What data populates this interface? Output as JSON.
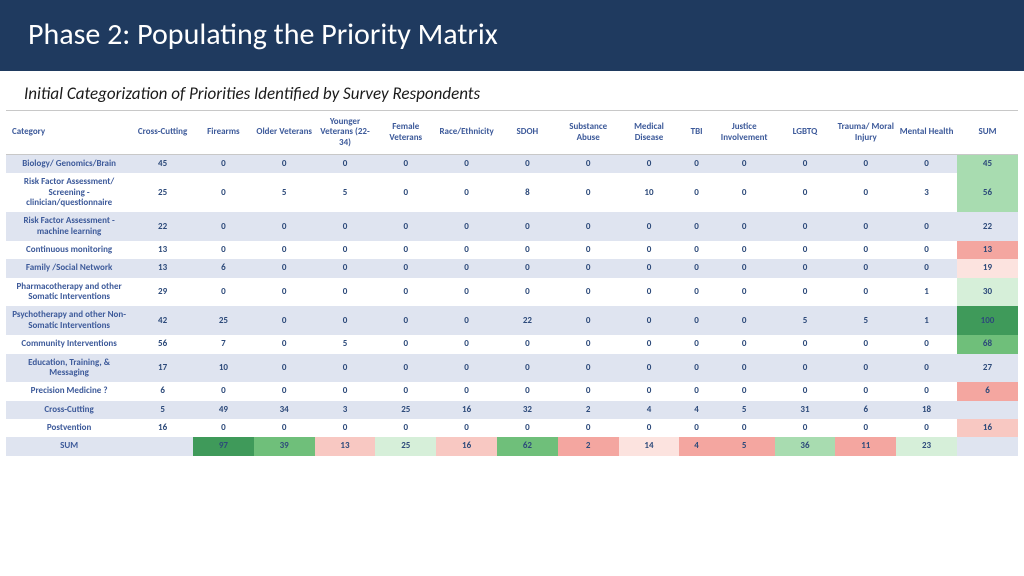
{
  "header": {
    "title": "Phase 2: Populating the Priority Matrix"
  },
  "subtitle": "Initial Categorization of Priorities Identified by Survey Respondents",
  "colors": {
    "header_bg": "#1f3a5f",
    "header_fg": "#ffffff",
    "band_a": "#dfe4f0",
    "band_b": "#ffffff",
    "text_primary": "#3d5a9a",
    "heat": {
      "green_dark": "#3f9a5a",
      "green": "#6fbf7a",
      "green_light": "#a8dcb0",
      "green_pale": "#d6efd9",
      "red": "#f4a6a0",
      "red_light": "#f8c8c2",
      "red_pale": "#fce3df",
      "blank": ""
    }
  },
  "table": {
    "columns": [
      "Category",
      "Cross-Cutting",
      "Firearms",
      "Older Veterans",
      "Younger Veterans (22-34)",
      "Female Veterans",
      "Race/Ethnicity",
      "SDOH",
      "Substance Abuse",
      "Medical Disease",
      "TBI",
      "Justice Involvement",
      "LGBTQ",
      "Trauma/ Moral Injury",
      "Mental Health",
      "SUM"
    ],
    "rows": [
      {
        "label": "Biology/ Genomics/Brain",
        "band": "a",
        "vals": [
          45,
          0,
          0,
          0,
          0,
          0,
          0,
          0,
          0,
          0,
          0,
          0,
          0,
          0,
          45
        ],
        "sum_heat": "green_light"
      },
      {
        "label": "Risk Factor Assessment/ Screening - clinician/questionnaire",
        "band": "b",
        "vals": [
          25,
          0,
          5,
          5,
          0,
          0,
          8,
          0,
          10,
          0,
          0,
          0,
          0,
          3,
          56
        ],
        "sum_heat": "green_light"
      },
      {
        "label": "Risk Factor Assessment - machine learning",
        "band": "a",
        "vals": [
          22,
          0,
          0,
          0,
          0,
          0,
          0,
          0,
          0,
          0,
          0,
          0,
          0,
          0,
          22
        ],
        "sum_heat": "blank"
      },
      {
        "label": "Continuous monitoring",
        "band": "b",
        "vals": [
          13,
          0,
          0,
          0,
          0,
          0,
          0,
          0,
          0,
          0,
          0,
          0,
          0,
          0,
          13
        ],
        "sum_heat": "red"
      },
      {
        "label": "Family /Social Network",
        "band": "a",
        "vals": [
          13,
          6,
          0,
          0,
          0,
          0,
          0,
          0,
          0,
          0,
          0,
          0,
          0,
          0,
          19
        ],
        "sum_heat": "red_pale"
      },
      {
        "label": "Pharmacotherapy and other Somatic Interventions",
        "band": "b",
        "vals": [
          29,
          0,
          0,
          0,
          0,
          0,
          0,
          0,
          0,
          0,
          0,
          0,
          0,
          1,
          30
        ],
        "sum_heat": "green_pale"
      },
      {
        "label": "Psychotherapy and other Non-Somatic Interventions",
        "band": "a",
        "vals": [
          42,
          25,
          0,
          0,
          0,
          0,
          22,
          0,
          0,
          0,
          0,
          5,
          5,
          1,
          100
        ],
        "sum_heat": "green_dark"
      },
      {
        "label": "Community Interventions",
        "band": "b",
        "vals": [
          56,
          7,
          0,
          5,
          0,
          0,
          0,
          0,
          0,
          0,
          0,
          0,
          0,
          0,
          68
        ],
        "sum_heat": "green"
      },
      {
        "label": "Education, Training, & Messaging",
        "band": "a",
        "vals": [
          17,
          10,
          0,
          0,
          0,
          0,
          0,
          0,
          0,
          0,
          0,
          0,
          0,
          0,
          27
        ],
        "sum_heat": "blank"
      },
      {
        "label": "Precision Medicine ?",
        "band": "b",
        "vals": [
          6,
          0,
          0,
          0,
          0,
          0,
          0,
          0,
          0,
          0,
          0,
          0,
          0,
          0,
          6
        ],
        "sum_heat": "red"
      },
      {
        "label": "Cross-Cutting",
        "band": "a",
        "vals": [
          5,
          49,
          34,
          3,
          25,
          16,
          32,
          2,
          4,
          4,
          5,
          31,
          6,
          18,
          null
        ],
        "sum_heat": "blank"
      },
      {
        "label": "Postvention",
        "band": "b",
        "vals": [
          16,
          0,
          0,
          0,
          0,
          0,
          0,
          0,
          0,
          0,
          0,
          0,
          0,
          0,
          16
        ],
        "sum_heat": "red_light"
      },
      {
        "label": "SUM",
        "band": "a",
        "vals": [
          null,
          97,
          39,
          13,
          25,
          16,
          62,
          2,
          14,
          4,
          5,
          36,
          11,
          23,
          null
        ],
        "col_heat": [
          null,
          "green_dark",
          "green",
          "red_light",
          "green_pale",
          "red_light",
          "green",
          "red",
          "red_pale",
          "red",
          "red",
          "green_light",
          "red",
          "green_pale",
          null
        ]
      }
    ]
  }
}
